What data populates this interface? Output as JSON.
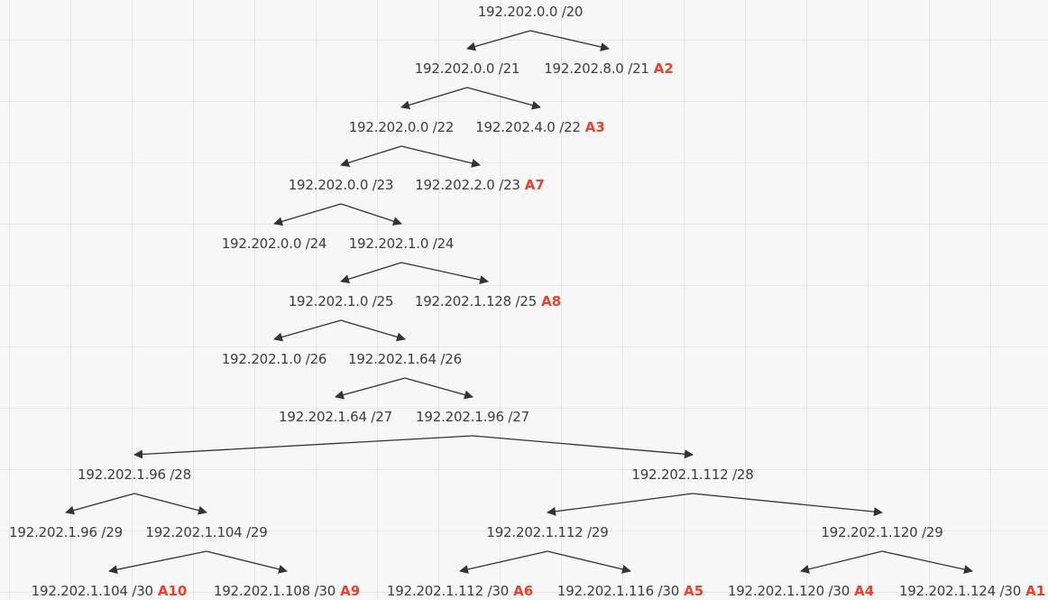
{
  "diagram": {
    "nodes": [
      {
        "id": "n20",
        "label": "192.202.0.0 /20",
        "tag": ""
      },
      {
        "id": "n21a",
        "label": "192.202.0.0 /21",
        "tag": ""
      },
      {
        "id": "n21b",
        "label": "192.202.8.0 /21",
        "tag": "A2"
      },
      {
        "id": "n22a",
        "label": "192.202.0.0 /22",
        "tag": ""
      },
      {
        "id": "n22b",
        "label": "192.202.4.0 /22",
        "tag": "A3"
      },
      {
        "id": "n23a",
        "label": "192.202.0.0 /23",
        "tag": ""
      },
      {
        "id": "n23b",
        "label": "192.202.2.0 /23",
        "tag": "A7"
      },
      {
        "id": "n24a",
        "label": "192.202.0.0 /24",
        "tag": ""
      },
      {
        "id": "n24b",
        "label": "192.202.1.0 /24",
        "tag": ""
      },
      {
        "id": "n25a",
        "label": "192.202.1.0 /25",
        "tag": ""
      },
      {
        "id": "n25b",
        "label": "192.202.1.128 /25",
        "tag": "A8"
      },
      {
        "id": "n26a",
        "label": "192.202.1.0 /26",
        "tag": ""
      },
      {
        "id": "n26b",
        "label": "192.202.1.64 /26",
        "tag": ""
      },
      {
        "id": "n27a",
        "label": "192.202.1.64 /27",
        "tag": ""
      },
      {
        "id": "n27b",
        "label": "192.202.1.96 /27",
        "tag": ""
      },
      {
        "id": "n28a",
        "label": "192.202.1.96 /28",
        "tag": ""
      },
      {
        "id": "n28b",
        "label": "192.202.1.112 /28",
        "tag": ""
      },
      {
        "id": "n29a",
        "label": "192.202.1.96 /29",
        "tag": ""
      },
      {
        "id": "n29b",
        "label": "192.202.1.104 /29",
        "tag": ""
      },
      {
        "id": "n29c",
        "label": "192.202.1.112 /29",
        "tag": ""
      },
      {
        "id": "n29d",
        "label": "192.202.1.120 /29",
        "tag": ""
      },
      {
        "id": "n30a",
        "label": "192.202.1.104 /30",
        "tag": "A10"
      },
      {
        "id": "n30b",
        "label": "192.202.1.108 /30",
        "tag": "A9"
      },
      {
        "id": "n30c",
        "label": "192.202.1.112 /30",
        "tag": "A6"
      },
      {
        "id": "n30d",
        "label": "192.202.1.116 /30",
        "tag": "A5"
      },
      {
        "id": "n30e",
        "label": "192.202.1.120 /30",
        "tag": "A4"
      },
      {
        "id": "n30f",
        "label": "192.202.1.124 /30",
        "tag": "A1"
      }
    ],
    "edges": [
      [
        "n20",
        "n21a"
      ],
      [
        "n20",
        "n21b"
      ],
      [
        "n21a",
        "n22a"
      ],
      [
        "n21a",
        "n22b"
      ],
      [
        "n22a",
        "n23a"
      ],
      [
        "n22a",
        "n23b"
      ],
      [
        "n23a",
        "n24a"
      ],
      [
        "n23a",
        "n24b"
      ],
      [
        "n24b",
        "n25a"
      ],
      [
        "n24b",
        "n25b"
      ],
      [
        "n25a",
        "n26a"
      ],
      [
        "n25a",
        "n26b"
      ],
      [
        "n26b",
        "n27a"
      ],
      [
        "n26b",
        "n27b"
      ],
      [
        "n27b",
        "n28a"
      ],
      [
        "n27b",
        "n28b"
      ],
      [
        "n28a",
        "n29a"
      ],
      [
        "n28a",
        "n29b"
      ],
      [
        "n28b",
        "n29c"
      ],
      [
        "n28b",
        "n29d"
      ],
      [
        "n29b",
        "n30a"
      ],
      [
        "n29b",
        "n30b"
      ],
      [
        "n29c",
        "n30c"
      ],
      [
        "n29c",
        "n30d"
      ],
      [
        "n29d",
        "n30e"
      ],
      [
        "n29d",
        "n30f"
      ]
    ],
    "colors": {
      "tag": "#e8412e",
      "text": "#3d3d3d",
      "arrow": "#333333",
      "grid": "#e6e6e6",
      "background": "#f7f7f7"
    }
  }
}
